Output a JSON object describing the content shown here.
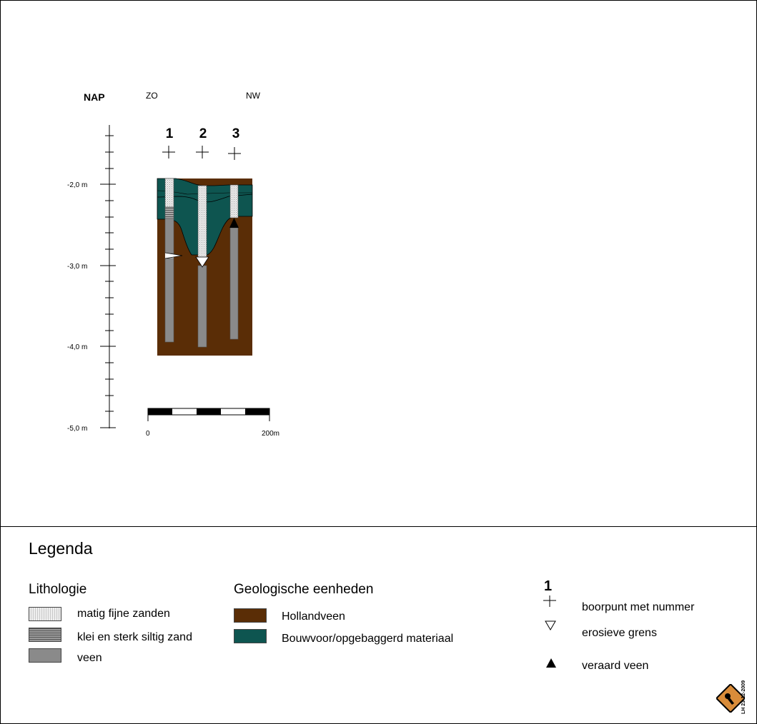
{
  "profile": {
    "datum_label": "NAP",
    "left_direction": "ZO",
    "right_direction": "NW",
    "depth_ticks": [
      "-2,0 m",
      "-3,0 m",
      "-4,0 m",
      "-5,0 m"
    ],
    "boreholes": [
      "1",
      "2",
      "3"
    ],
    "scale_start": "0",
    "scale_end": "200m"
  },
  "colors": {
    "hollandveen": "#5a2d06",
    "bouwvoor": "#0e5550",
    "veen": "#8a8a8a",
    "zand": "#e8e8e8",
    "klei": "#8f8f8f",
    "logo": "#d98c3a"
  },
  "legend": {
    "title": "Legenda",
    "lithologie": {
      "heading": "Lithologie",
      "items": [
        "matig fijne zanden",
        "klei en sterk siltig zand",
        "veen"
      ]
    },
    "geologie": {
      "heading": "Geologische eenheden",
      "items": [
        "Hollandveen",
        "Bouwvoor/opgebaggerd materiaal"
      ]
    },
    "symbols": {
      "number": "1",
      "items": [
        "boorpunt met nummer",
        "erosieve grens",
        "veraard veen"
      ]
    }
  },
  "stamp": "LH 23-12-2009",
  "icons": [
    "plus-icon",
    "triangle-down-icon",
    "triangle-up-icon",
    "logo-icon"
  ]
}
